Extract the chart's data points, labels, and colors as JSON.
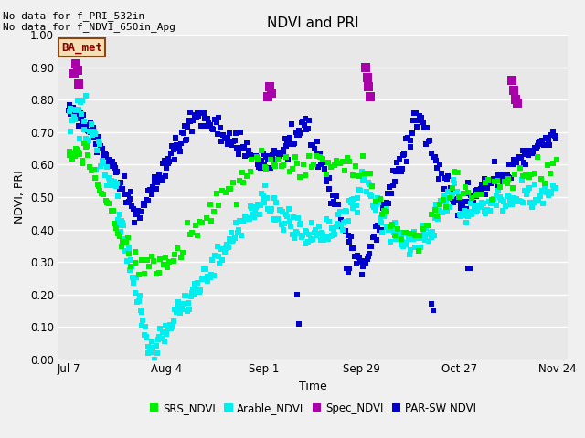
{
  "title": "NDVI and PRI",
  "xlabel": "Time",
  "ylabel": "NDVI, PRI",
  "ylim": [
    0.0,
    1.0
  ],
  "yticks": [
    0.0,
    0.1,
    0.2,
    0.3,
    0.4,
    0.5,
    0.6,
    0.7,
    0.8,
    0.9,
    1.0
  ],
  "xtick_labels": [
    "Jul 7",
    "Aug 4",
    "Sep 1",
    "Sep 29",
    "Oct 27",
    "Nov 24"
  ],
  "xtick_positions": [
    0,
    28,
    56,
    84,
    112,
    140
  ],
  "annotation_text": "No data for f_PRI_532in\nNo data for f_NDVI_650in_Apg",
  "box_label": "BA_met",
  "box_facecolor": "#f5deb3",
  "box_edgecolor": "#8b4513",
  "box_textcolor": "#8b0000",
  "colors": {
    "SRS_NDVI": "#00ee00",
    "Arable_NDVI": "#00eeee",
    "Spec_NDVI": "#aa00aa",
    "PAR_SW_NDVI": "#0000cc"
  },
  "bg_color": "#e8e8e8",
  "fig_bg_color": "#f0f0f0",
  "marker_size": 25
}
